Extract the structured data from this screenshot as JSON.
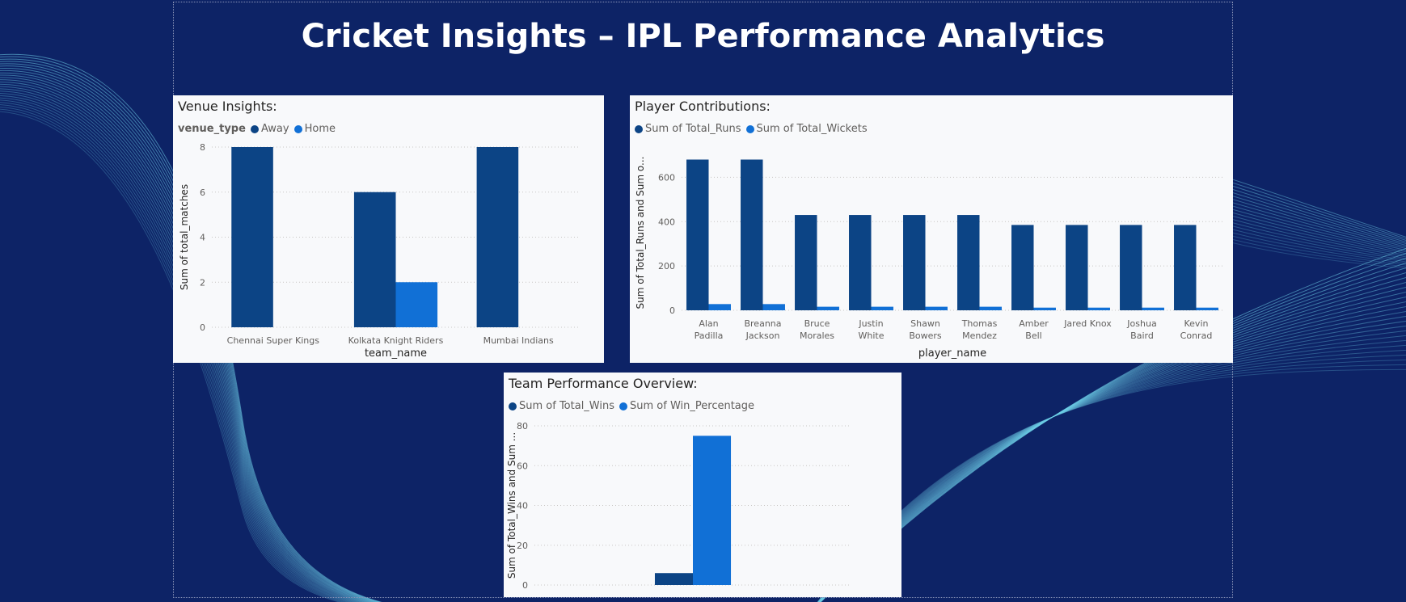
{
  "page": {
    "title": "Cricket Insights – IPL Performance Analytics"
  },
  "colors": {
    "background": "#0d2366",
    "series_dark": "#0c4485",
    "series_light": "#1170d6",
    "card": "#f8f9fb"
  },
  "chart_data": [
    {
      "id": "venue",
      "type": "bar",
      "title": "Venue Insights:",
      "legend_title": "venue_type",
      "categories": [
        "Chennai Super Kings",
        "Kolkata Knight Riders",
        "Mumbai Indians"
      ],
      "series": [
        {
          "name": "Away",
          "values": [
            8,
            6,
            8
          ]
        },
        {
          "name": "Home",
          "values": [
            0,
            2,
            0
          ]
        }
      ],
      "xlabel": "team_name",
      "ylabel": "Sum of total_matches",
      "ylim": [
        0,
        8
      ],
      "yticks": [
        0,
        2,
        4,
        6,
        8
      ],
      "grid": true,
      "legend_position": "top-left"
    },
    {
      "id": "players",
      "type": "bar",
      "title": "Player Contributions:",
      "categories": [
        [
          "Alan",
          "Padilla"
        ],
        [
          "Breanna",
          "Jackson"
        ],
        [
          "Bruce",
          "Morales"
        ],
        [
          "Justin",
          "White"
        ],
        [
          "Shawn",
          "Bowers"
        ],
        [
          "Thomas",
          "Mendez"
        ],
        [
          "Amber",
          "Bell"
        ],
        [
          "Jared Knox"
        ],
        [
          "Joshua",
          "Baird"
        ],
        [
          "Kevin",
          "Conrad"
        ]
      ],
      "series": [
        {
          "name": "Sum of Total_Runs",
          "values": [
            680,
            680,
            430,
            430,
            430,
            430,
            385,
            385,
            385,
            385
          ]
        },
        {
          "name": "Sum of Total_Wickets",
          "values": [
            28,
            28,
            16,
            16,
            16,
            16,
            12,
            12,
            12,
            12
          ]
        }
      ],
      "xlabel": "player_name",
      "ylabel": "Sum of Total_Runs and Sum o...",
      "ylim": [
        0,
        700
      ],
      "yticks": [
        0,
        200,
        400,
        600
      ],
      "grid": true,
      "legend_position": "top-left"
    },
    {
      "id": "teams",
      "type": "bar",
      "title": "Team Performance Overview:",
      "categories": [
        ""
      ],
      "series": [
        {
          "name": "Sum of Total_Wins",
          "values": [
            6
          ]
        },
        {
          "name": "Sum of Win_Percentage",
          "values": [
            75
          ]
        }
      ],
      "xlabel": "",
      "ylabel": "Sum of Total_Wins and Sum ...",
      "ylim": [
        0,
        80
      ],
      "yticks": [
        0,
        20,
        40,
        60,
        80
      ],
      "grid": true,
      "legend_position": "top-left"
    }
  ]
}
